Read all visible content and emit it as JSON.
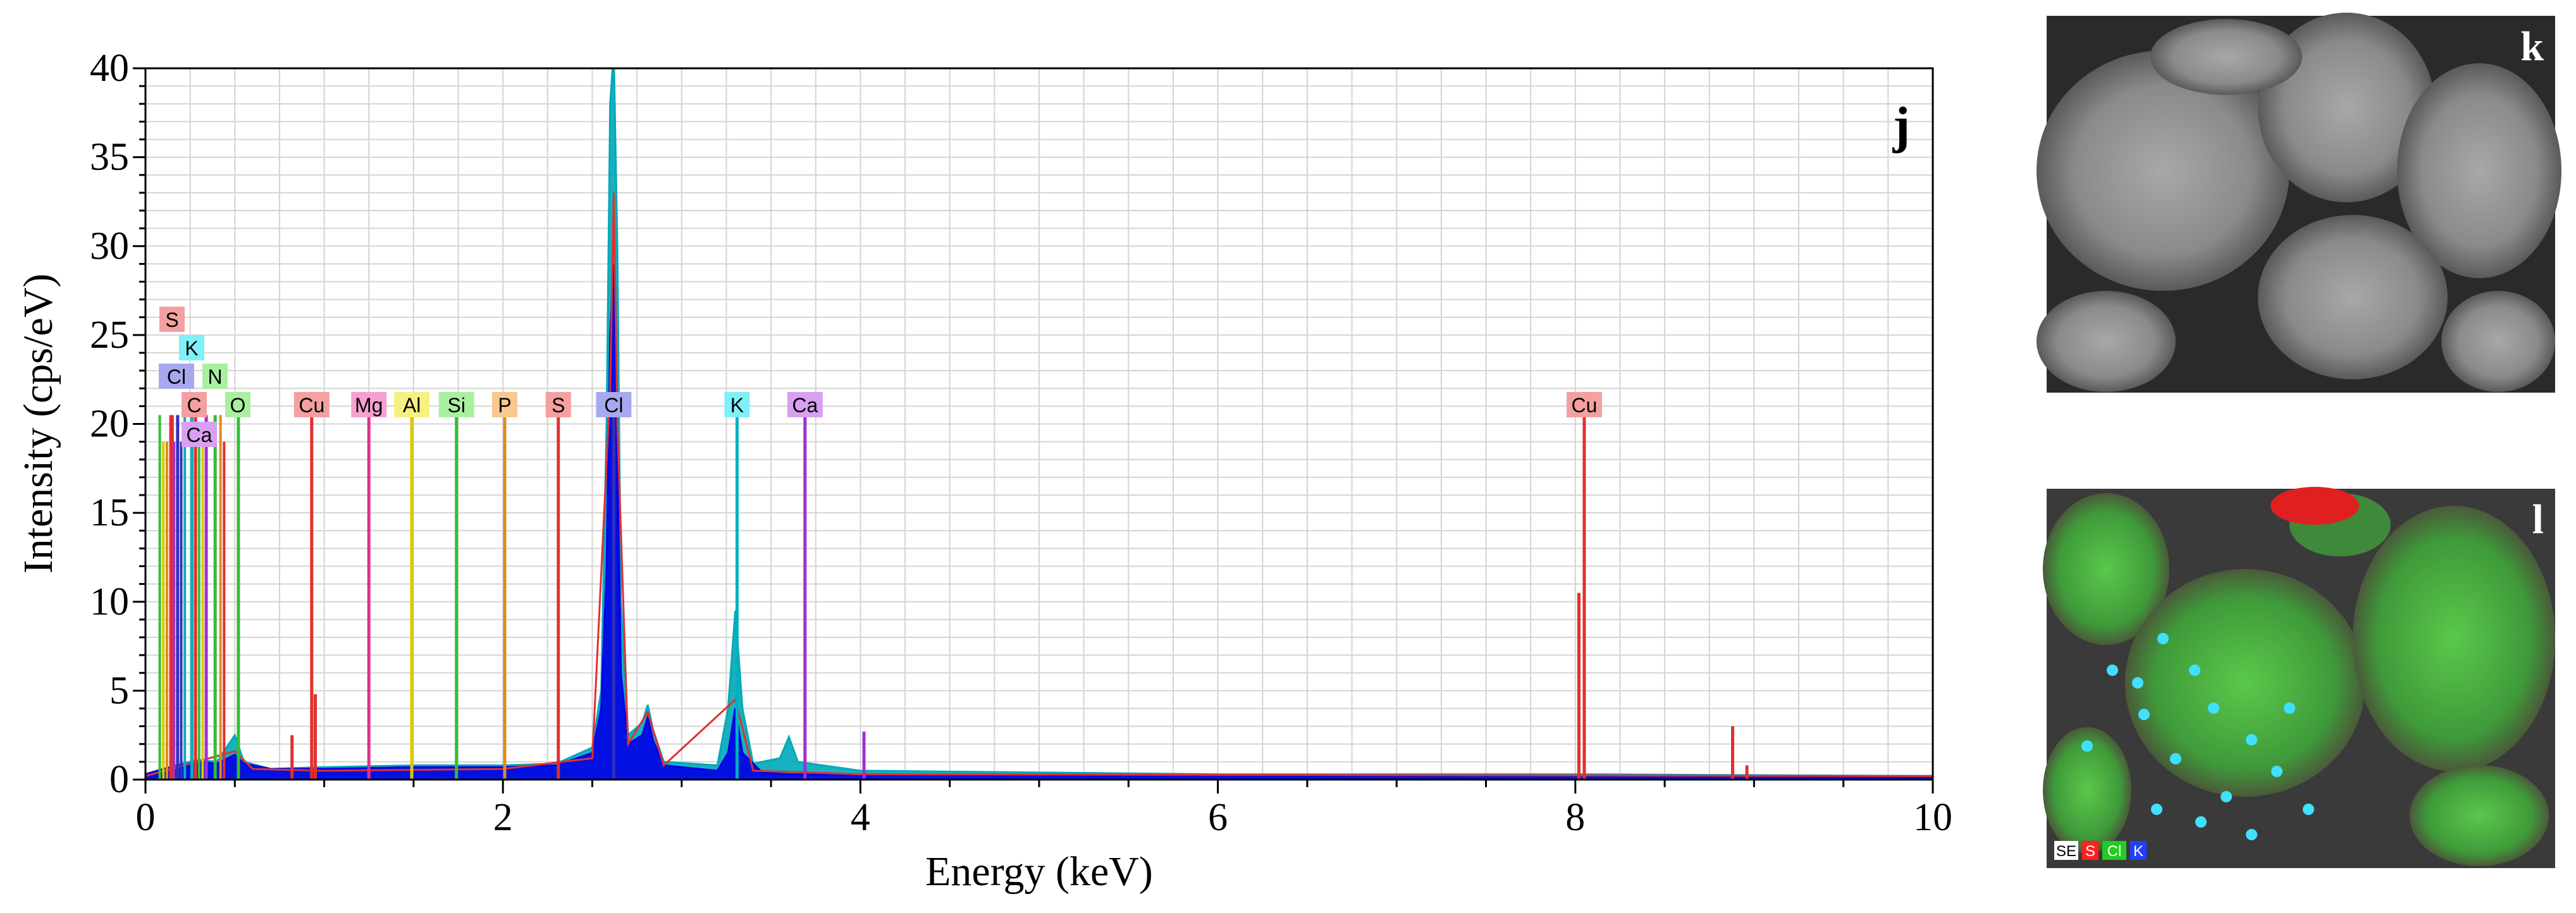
{
  "figure": {
    "spectrum_panel_letter": "j",
    "se_image_panel_letter": "k",
    "map_image_panel_letter": "l",
    "map_legend": [
      {
        "text": "SE",
        "color": "#ffffff",
        "text_color": "#000000"
      },
      {
        "text": "S",
        "color": "#ff2020",
        "text_color": "#ffffff"
      },
      {
        "text": "Cl",
        "color": "#22cc22",
        "text_color": "#ffffff"
      },
      {
        "text": "K",
        "color": "#2040ff",
        "text_color": "#ffffff"
      }
    ]
  },
  "chart_data": {
    "type": "line",
    "xlabel": "Energy (keV)",
    "ylabel": "Intensity (cps/eV)",
    "xlim": [
      0,
      10
    ],
    "ylim": [
      0,
      40
    ],
    "x_ticks": [
      0,
      2,
      4,
      6,
      8,
      10
    ],
    "y_ticks": [
      0,
      5,
      10,
      15,
      20,
      25,
      30,
      35,
      40
    ],
    "grid": true,
    "series": [
      {
        "color": "#0000e6",
        "points": [
          [
            0.0,
            0.3
          ],
          [
            0.1,
            0.6
          ],
          [
            0.2,
            0.8
          ],
          [
            0.3,
            1.0
          ],
          [
            0.4,
            0.9
          ],
          [
            0.5,
            1.4
          ],
          [
            0.55,
            0.9
          ],
          [
            0.7,
            0.6
          ],
          [
            1.0,
            0.6
          ],
          [
            1.5,
            0.7
          ],
          [
            2.0,
            0.7
          ],
          [
            2.3,
            0.8
          ],
          [
            2.5,
            1.5
          ],
          [
            2.55,
            4
          ],
          [
            2.58,
            12
          ],
          [
            2.6,
            25
          ],
          [
            2.62,
            29
          ],
          [
            2.64,
            18
          ],
          [
            2.66,
            6
          ],
          [
            2.7,
            2.0
          ],
          [
            2.78,
            2.5
          ],
          [
            2.81,
            3.5
          ],
          [
            2.84,
            2.2
          ],
          [
            2.9,
            0.8
          ],
          [
            3.2,
            0.5
          ],
          [
            3.26,
            1.5
          ],
          [
            3.3,
            4.0
          ],
          [
            3.34,
            1.5
          ],
          [
            3.45,
            0.4
          ],
          [
            3.6,
            0.3
          ],
          [
            4.0,
            0.3
          ],
          [
            6.0,
            0.2
          ],
          [
            10.0,
            0.2
          ]
        ]
      },
      {
        "color": "#00a8b8",
        "points": [
          [
            0.0,
            0.3
          ],
          [
            0.1,
            0.6
          ],
          [
            0.2,
            0.9
          ],
          [
            0.3,
            1.1
          ],
          [
            0.4,
            1.0
          ],
          [
            0.5,
            2.5
          ],
          [
            0.55,
            1.0
          ],
          [
            0.7,
            0.6
          ],
          [
            1.0,
            0.7
          ],
          [
            1.5,
            0.8
          ],
          [
            2.0,
            0.8
          ],
          [
            2.3,
            0.9
          ],
          [
            2.5,
            1.8
          ],
          [
            2.55,
            5
          ],
          [
            2.58,
            20
          ],
          [
            2.6,
            38
          ],
          [
            2.62,
            41
          ],
          [
            2.64,
            30
          ],
          [
            2.66,
            10
          ],
          [
            2.7,
            2.5
          ],
          [
            2.78,
            3.2
          ],
          [
            2.81,
            4.2
          ],
          [
            2.84,
            2.8
          ],
          [
            2.9,
            1.0
          ],
          [
            3.2,
            0.8
          ],
          [
            3.26,
            4
          ],
          [
            3.3,
            9.5
          ],
          [
            3.34,
            4
          ],
          [
            3.4,
            0.9
          ],
          [
            3.55,
            1.2
          ],
          [
            3.6,
            2.4
          ],
          [
            3.65,
            1.0
          ],
          [
            4.0,
            0.5
          ],
          [
            6.0,
            0.3
          ],
          [
            8.0,
            0.3
          ],
          [
            10.0,
            0.2
          ]
        ]
      },
      {
        "color": "#e03030",
        "points": [
          [
            0.0,
            0.2
          ],
          [
            0.5,
            1.6
          ],
          [
            0.6,
            0.6
          ],
          [
            1.0,
            0.5
          ],
          [
            2.0,
            0.6
          ],
          [
            2.5,
            1.2
          ],
          [
            2.6,
            22
          ],
          [
            2.62,
            33
          ],
          [
            2.64,
            20
          ],
          [
            2.7,
            2.0
          ],
          [
            2.81,
            3.8
          ],
          [
            2.9,
            0.8
          ],
          [
            3.3,
            4.5
          ],
          [
            3.4,
            0.5
          ],
          [
            4.0,
            0.3
          ],
          [
            10.0,
            0.2
          ]
        ]
      }
    ],
    "element_lines": [
      {
        "label": "Cu",
        "energy": 0.93,
        "color": "#e03030",
        "label_bg": "#f4a0a0"
      },
      {
        "label": "Mg",
        "energy": 1.25,
        "color": "#e0308a",
        "label_bg": "#f5a0d0"
      },
      {
        "label": "Al",
        "energy": 1.49,
        "color": "#d8c800",
        "label_bg": "#f5f080"
      },
      {
        "label": "Si",
        "energy": 1.74,
        "color": "#30c030",
        "label_bg": "#a8f0a0"
      },
      {
        "label": "P",
        "energy": 2.01,
        "color": "#e08a20",
        "label_bg": "#f8c890"
      },
      {
        "label": "S",
        "energy": 2.31,
        "color": "#e03030",
        "label_bg": "#f4a0a0"
      },
      {
        "label": "Cl",
        "energy": 2.62,
        "color": "#3030c0",
        "label_bg": "#a8a8f0"
      },
      {
        "label": "K",
        "energy": 3.31,
        "color": "#00b0c0",
        "label_bg": "#80f0f8"
      },
      {
        "label": "Ca",
        "energy": 3.69,
        "color": "#a030d0",
        "label_bg": "#d8a0f0"
      },
      {
        "label": "Cu",
        "energy": 8.05,
        "color": "#e03030",
        "label_bg": "#f4a0a0"
      },
      {
        "label": "C",
        "energy": 0.28,
        "color": "#e03030",
        "label_bg": "#f4a0a0"
      },
      {
        "label": "O",
        "energy": 0.52,
        "color": "#30c030",
        "label_bg": "#a8f0a0"
      },
      {
        "label": "Ca",
        "energy": 0.34,
        "color": "#a030d0",
        "label_bg": "#d8a0f0"
      },
      {
        "label": "N",
        "energy": 0.39,
        "color": "#30c030",
        "label_bg": "#a8f0a0"
      },
      {
        "label": "Cl",
        "energy": 0.18,
        "color": "#3030c0",
        "label_bg": "#a8a8f0"
      },
      {
        "label": "K",
        "energy": 0.26,
        "color": "#00b0c0",
        "label_bg": "#80f0f8"
      },
      {
        "label": "S",
        "energy": 0.15,
        "color": "#e03030",
        "label_bg": "#f4a0a0"
      }
    ]
  }
}
